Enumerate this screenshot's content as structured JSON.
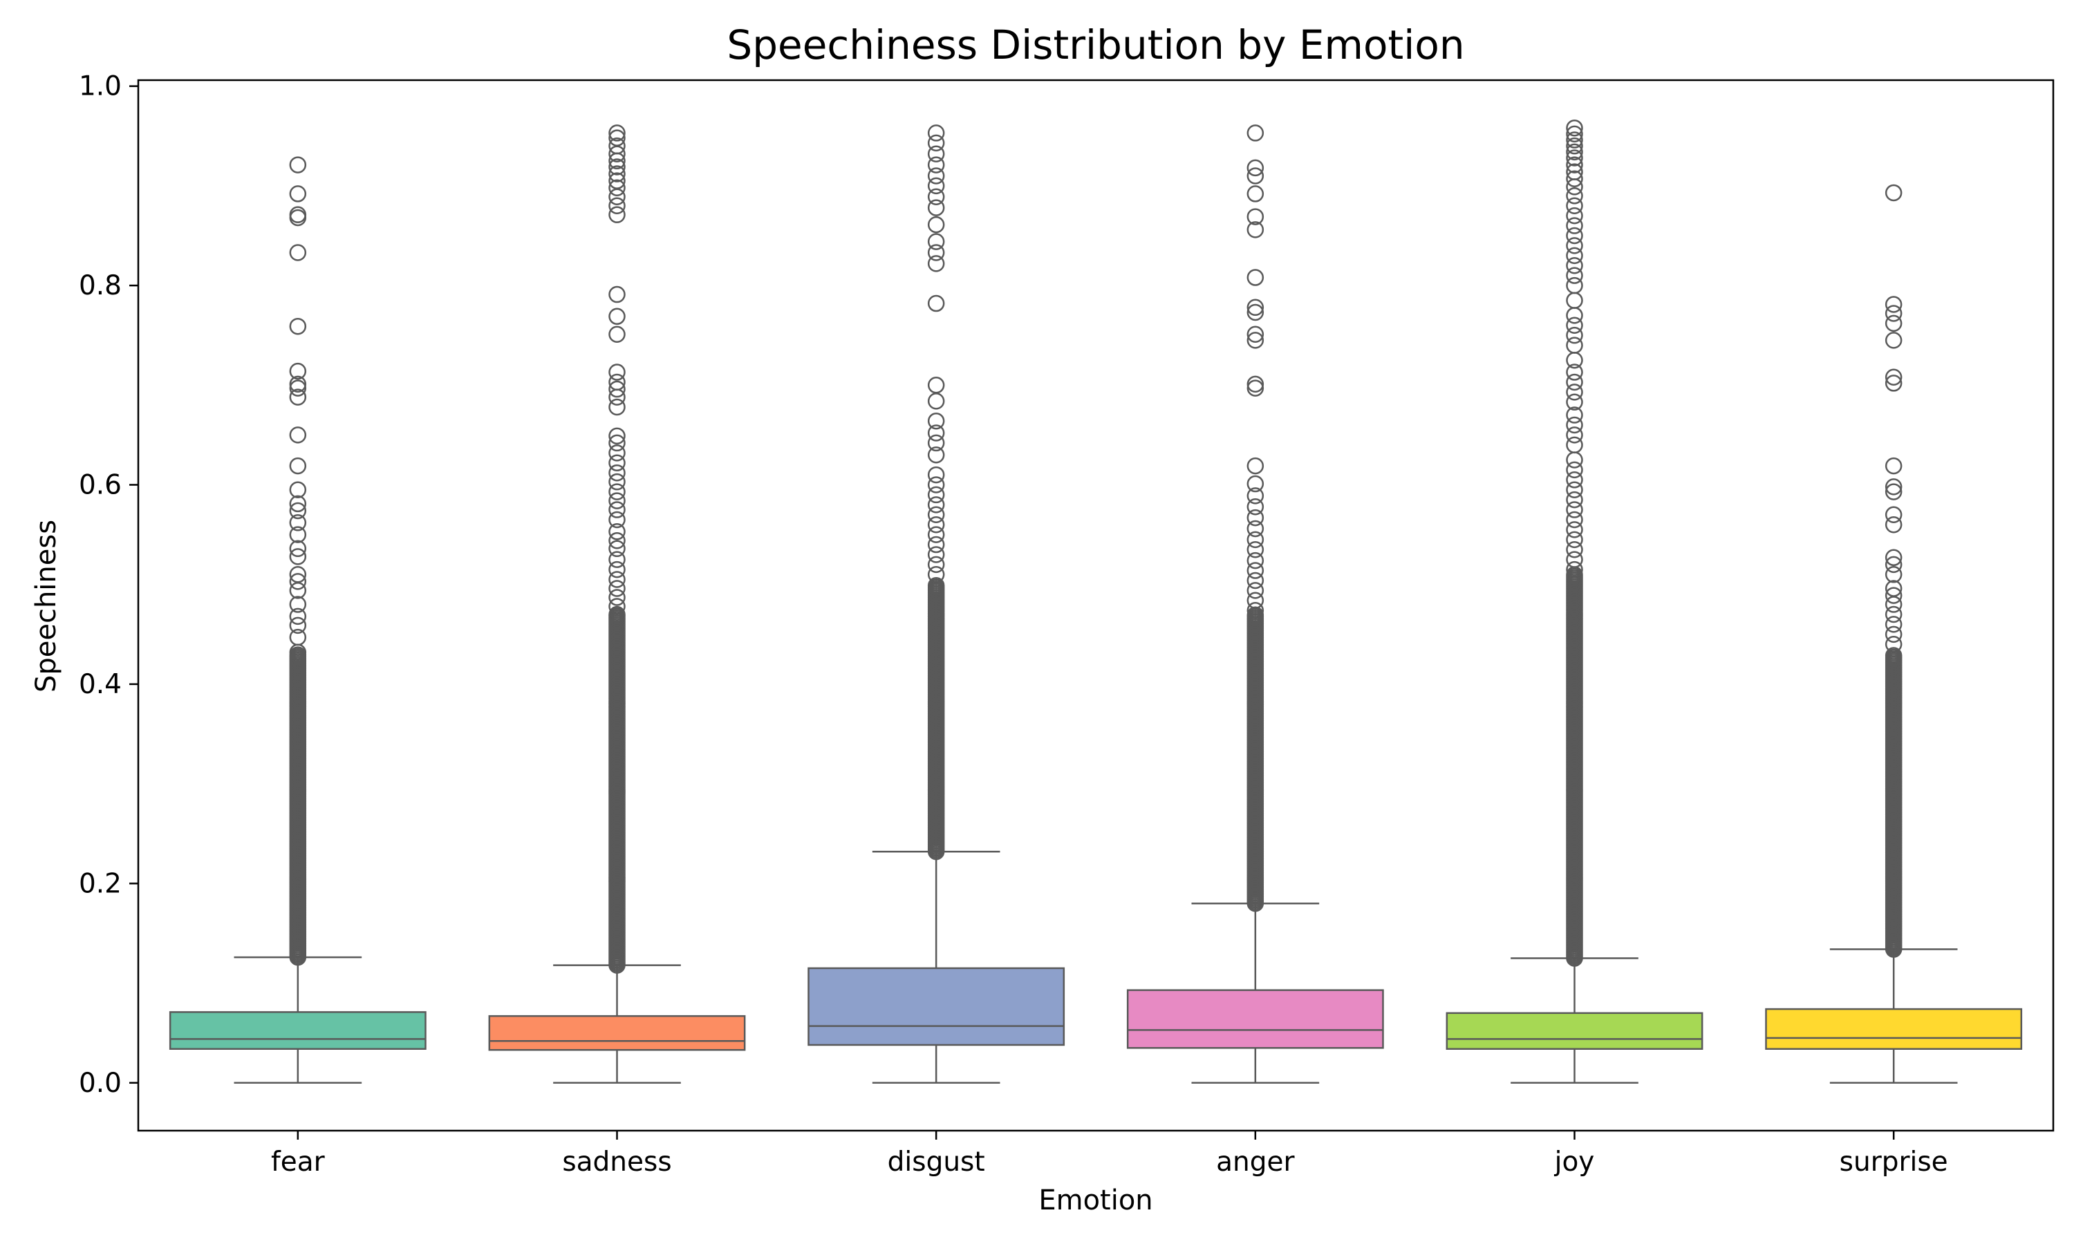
{
  "chart_data": {
    "type": "box",
    "title": "Speechiness Distribution by Emotion",
    "xlabel": "Emotion",
    "ylabel": "Speechiness",
    "ylim": [
      -0.048,
      1.006
    ],
    "yticks": [
      "0.0",
      "0.2",
      "0.4",
      "0.6",
      "0.8",
      "1.0"
    ],
    "ytick_values": [
      0.0,
      0.2,
      0.4,
      0.6,
      0.8,
      1.0
    ],
    "grid": false,
    "legend": "none",
    "box_edge_color": "#595959",
    "categories": [
      "fear",
      "sadness",
      "disgust",
      "anger",
      "joy",
      "surprise"
    ],
    "series": [
      {
        "category": "fear",
        "color": "#66c2a5",
        "whisker_low": 0.0,
        "q1": 0.034,
        "median": 0.044,
        "q3": 0.071,
        "whisker_high": 0.126,
        "outliers": [
          0.921,
          0.892,
          0.871,
          0.868,
          0.833,
          0.759,
          0.714,
          0.701,
          0.697,
          0.688,
          0.65,
          0.619,
          0.595,
          0.581,
          0.574,
          0.562,
          0.55,
          0.536,
          0.528,
          0.51,
          0.503,
          0.494,
          0.48,
          0.468,
          0.459,
          0.447,
          0.432
        ],
        "dense_outlier_range": [
          0.126,
          0.43
        ]
      },
      {
        "category": "sadness",
        "color": "#fc8d62",
        "whisker_low": 0.0,
        "q1": 0.033,
        "median": 0.042,
        "q3": 0.067,
        "whisker_high": 0.118,
        "outliers": [
          0.953,
          0.948,
          0.94,
          0.932,
          0.925,
          0.919,
          0.912,
          0.905,
          0.898,
          0.889,
          0.88,
          0.871,
          0.791,
          0.769,
          0.751,
          0.713,
          0.703,
          0.696,
          0.688,
          0.678,
          0.649,
          0.642,
          0.632,
          0.622,
          0.612,
          0.603,
          0.593,
          0.584,
          0.575,
          0.565,
          0.553,
          0.544,
          0.536,
          0.525,
          0.515,
          0.505,
          0.496,
          0.487,
          0.478
        ],
        "dense_outlier_range": [
          0.118,
          0.47
        ]
      },
      {
        "category": "disgust",
        "color": "#8da0cb",
        "whisker_low": 0.0,
        "q1": 0.038,
        "median": 0.057,
        "q3": 0.115,
        "whisker_high": 0.232,
        "outliers": [
          0.953,
          0.943,
          0.932,
          0.921,
          0.91,
          0.9,
          0.889,
          0.878,
          0.861,
          0.844,
          0.833,
          0.822,
          0.782,
          0.7,
          0.684,
          0.664,
          0.652,
          0.642,
          0.63,
          0.61,
          0.6,
          0.59,
          0.58,
          0.57,
          0.56,
          0.55,
          0.54,
          0.53,
          0.52,
          0.51
        ],
        "dense_outlier_range": [
          0.232,
          0.5
        ]
      },
      {
        "category": "anger",
        "color": "#e78ac3",
        "whisker_low": 0.0,
        "q1": 0.035,
        "median": 0.053,
        "q3": 0.093,
        "whisker_high": 0.18,
        "outliers": [
          0.953,
          0.918,
          0.91,
          0.892,
          0.869,
          0.856,
          0.808,
          0.778,
          0.773,
          0.751,
          0.745,
          0.701,
          0.697,
          0.619,
          0.601,
          0.589,
          0.578,
          0.567,
          0.556,
          0.545,
          0.535,
          0.524,
          0.514,
          0.504,
          0.494,
          0.484,
          0.474
        ],
        "dense_outlier_range": [
          0.18,
          0.47
        ]
      },
      {
        "category": "joy",
        "color": "#a6d854",
        "whisker_low": 0.0,
        "q1": 0.034,
        "median": 0.044,
        "q3": 0.07,
        "whisker_high": 0.125,
        "outliers": [
          0.958,
          0.952,
          0.946,
          0.94,
          0.934,
          0.928,
          0.921,
          0.914,
          0.907,
          0.899,
          0.89,
          0.88,
          0.87,
          0.86,
          0.85,
          0.84,
          0.83,
          0.82,
          0.81,
          0.8,
          0.785,
          0.77,
          0.76,
          0.75,
          0.74,
          0.725,
          0.713,
          0.703,
          0.693,
          0.683,
          0.67,
          0.66,
          0.65,
          0.64,
          0.625,
          0.615,
          0.605,
          0.595,
          0.585,
          0.575,
          0.565,
          0.555,
          0.545,
          0.535,
          0.525,
          0.515
        ],
        "dense_outlier_range": [
          0.125,
          0.51
        ]
      },
      {
        "category": "surprise",
        "color": "#ffd92f",
        "whisker_low": 0.0,
        "q1": 0.034,
        "median": 0.045,
        "q3": 0.074,
        "whisker_high": 0.134,
        "outliers": [
          0.893,
          0.781,
          0.772,
          0.762,
          0.745,
          0.708,
          0.702,
          0.619,
          0.598,
          0.593,
          0.57,
          0.56,
          0.527,
          0.52,
          0.51,
          0.496,
          0.489,
          0.48,
          0.47,
          0.46,
          0.45,
          0.44
        ],
        "dense_outlier_range": [
          0.134,
          0.43
        ]
      }
    ]
  }
}
